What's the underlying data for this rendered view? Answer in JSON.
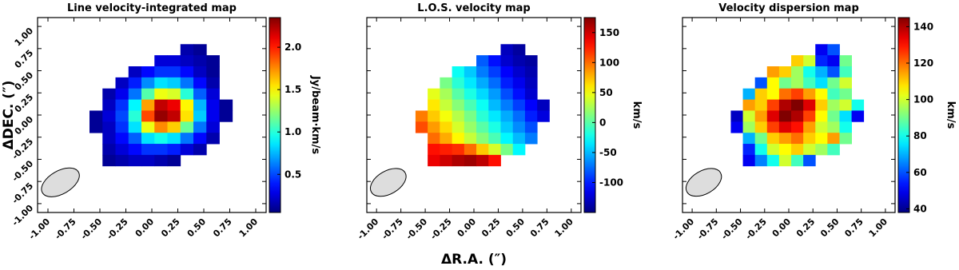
{
  "chart_data": [
    {
      "type": "heatmap",
      "title": "Line velocity-integrated map",
      "ylabel": "ΔDEC. (″)",
      "colorbar_label": "Jy/beam·km/s",
      "colormap": "jet",
      "xlim": [
        -1.1,
        1.1
      ],
      "ylim": [
        -1.1,
        1.1
      ],
      "xticks": [
        {
          "value": -1,
          "label": "-1.00"
        },
        {
          "value": -0.75,
          "label": "-0.75"
        },
        {
          "value": -0.5,
          "label": "-0.50"
        },
        {
          "value": -0.25,
          "label": "-0.25"
        },
        {
          "value": 0,
          "label": "0.00"
        },
        {
          "value": 0.25,
          "label": "0.25"
        },
        {
          "value": 0.5,
          "label": "0.50"
        },
        {
          "value": 0.75,
          "label": "0.75"
        },
        {
          "value": 1,
          "label": "1.00"
        }
      ],
      "yticks": [
        {
          "value": -1,
          "label": "-1.00"
        },
        {
          "value": -0.75,
          "label": "-0.75"
        },
        {
          "value": -0.5,
          "label": "-0.50"
        },
        {
          "value": -0.25,
          "label": "-0.25"
        },
        {
          "value": 0,
          "label": "0.00"
        },
        {
          "value": 0.25,
          "label": "0.25"
        },
        {
          "value": 0.5,
          "label": "0.50"
        },
        {
          "value": 0.75,
          "label": "0.75"
        },
        {
          "value": 1,
          "label": "1.00"
        }
      ],
      "clim": [
        0.05,
        2.35
      ],
      "cticks": [
        0.5,
        {
          "value": 1,
          "label": "1.0"
        },
        1.5,
        {
          "value": 2,
          "label": "2.0"
        }
      ],
      "extent": [
        -0.6,
        0.775,
        -0.575,
        0.8
      ],
      "z": [
        [
          null,
          null,
          null,
          null,
          null,
          null,
          null,
          0.15,
          0.1,
          null,
          null
        ],
        [
          null,
          null,
          null,
          null,
          null,
          0.25,
          0.25,
          0.2,
          0.15,
          0.1,
          null
        ],
        [
          null,
          null,
          null,
          0.2,
          0.35,
          0.45,
          0.45,
          0.35,
          0.2,
          0.1,
          null
        ],
        [
          null,
          null,
          0.2,
          0.4,
          0.65,
          0.85,
          0.8,
          0.6,
          0.35,
          0.15,
          null
        ],
        [
          null,
          0.15,
          0.3,
          0.6,
          1.1,
          1.45,
          1.4,
          1.0,
          0.55,
          0.25,
          null
        ],
        [
          null,
          0.2,
          0.45,
          0.9,
          1.7,
          2.2,
          2.1,
          1.5,
          0.75,
          0.3,
          0.1
        ],
        [
          0.1,
          0.25,
          0.5,
          1.0,
          1.9,
          2.3,
          2.2,
          1.55,
          0.8,
          0.3,
          0.1
        ],
        [
          0.1,
          0.2,
          0.45,
          0.85,
          1.45,
          1.75,
          1.6,
          1.15,
          0.6,
          0.25,
          null
        ],
        [
          null,
          0.2,
          0.35,
          0.55,
          0.85,
          0.95,
          0.85,
          0.6,
          0.35,
          0.15,
          null
        ],
        [
          null,
          0.15,
          0.25,
          0.35,
          0.45,
          0.45,
          0.4,
          0.25,
          0.15,
          null,
          null
        ],
        [
          null,
          0.1,
          0.15,
          0.2,
          0.2,
          0.15,
          0.1,
          null,
          null,
          null,
          null
        ]
      ]
    },
    {
      "type": "heatmap",
      "title": "L.O.S. velocity map",
      "xlabel": "ΔR.A. (″)",
      "colorbar_label": "km/s",
      "colormap": "jet",
      "xlim": [
        -1.1,
        1.1
      ],
      "ylim": [
        -1.1,
        1.1
      ],
      "xticks": [
        {
          "value": -1,
          "label": "-1.00"
        },
        {
          "value": -0.75,
          "label": "-0.75"
        },
        {
          "value": -0.5,
          "label": "-0.50"
        },
        {
          "value": -0.25,
          "label": "-0.25"
        },
        {
          "value": 0,
          "label": "0.00"
        },
        {
          "value": 0.25,
          "label": "0.25"
        },
        {
          "value": 0.5,
          "label": "0.50"
        },
        {
          "value": 0.75,
          "label": "0.75"
        },
        {
          "value": 1,
          "label": "1.00"
        }
      ],
      "yticks": [
        -1,
        -0.75,
        -0.5,
        -0.25,
        0,
        0.25,
        0.5,
        0.75,
        1
      ],
      "clim": [
        -150,
        175
      ],
      "cticks": [
        -100,
        -50,
        0,
        50,
        100,
        150
      ],
      "extent": [
        -0.6,
        0.775,
        -0.575,
        0.8
      ],
      "z": [
        [
          null,
          null,
          null,
          null,
          null,
          null,
          null,
          -130,
          -140,
          null,
          null
        ],
        [
          null,
          null,
          null,
          null,
          null,
          -80,
          -105,
          -125,
          -135,
          -140,
          null
        ],
        [
          null,
          null,
          null,
          -25,
          -45,
          -70,
          -90,
          -110,
          -125,
          -135,
          null
        ],
        [
          null,
          null,
          10,
          -15,
          -35,
          -55,
          -75,
          -100,
          -115,
          -130,
          null
        ],
        [
          null,
          45,
          25,
          0,
          -20,
          -40,
          -60,
          -85,
          -105,
          -125,
          null
        ],
        [
          null,
          60,
          35,
          15,
          -5,
          -25,
          -50,
          -70,
          -90,
          -110,
          -130
        ],
        [
          95,
          70,
          50,
          30,
          10,
          -15,
          -35,
          -55,
          -75,
          -100,
          -120
        ],
        [
          110,
          85,
          65,
          40,
          20,
          0,
          -20,
          -45,
          -65,
          -85,
          null
        ],
        [
          null,
          100,
          80,
          55,
          35,
          15,
          -5,
          -30,
          -50,
          -70,
          null
        ],
        [
          null,
          130,
          125,
          120,
          100,
          70,
          40,
          10,
          -30,
          null,
          null
        ],
        [
          null,
          140,
          150,
          160,
          165,
          155,
          130,
          null,
          null,
          null,
          null
        ]
      ]
    },
    {
      "type": "heatmap",
      "title": "Velocity dispersion map",
      "colorbar_label": "km/s",
      "colormap": "jet",
      "xlim": [
        -1.1,
        1.1
      ],
      "ylim": [
        -1.1,
        1.1
      ],
      "xticks": [
        {
          "value": -1,
          "label": "-1.00"
        },
        {
          "value": -0.75,
          "label": "-0.75"
        },
        {
          "value": -0.5,
          "label": "-0.50"
        },
        {
          "value": -0.25,
          "label": "-0.25"
        },
        {
          "value": 0,
          "label": "0.00"
        },
        {
          "value": 0.25,
          "label": "0.25"
        },
        {
          "value": 0.5,
          "label": "0.50"
        },
        {
          "value": 0.75,
          "label": "0.75"
        },
        {
          "value": 1,
          "label": "1.00"
        }
      ],
      "yticks": [
        -1,
        -0.75,
        -0.5,
        -0.25,
        0,
        0.25,
        0.5,
        0.75,
        1
      ],
      "clim": [
        38,
        145
      ],
      "cticks": [
        40,
        60,
        80,
        100,
        120,
        140
      ],
      "extent": [
        -0.6,
        0.775,
        -0.575,
        0.8
      ],
      "z": [
        [
          null,
          null,
          null,
          null,
          null,
          null,
          null,
          50,
          60,
          null,
          null
        ],
        [
          null,
          null,
          null,
          null,
          null,
          110,
          100,
          55,
          50,
          90,
          null
        ],
        [
          null,
          null,
          null,
          115,
          110,
          95,
          80,
          70,
          60,
          85,
          null
        ],
        [
          null,
          null,
          60,
          105,
          90,
          95,
          85,
          75,
          90,
          100,
          null
        ],
        [
          null,
          70,
          110,
          105,
          120,
          125,
          115,
          105,
          85,
          90,
          null
        ],
        [
          null,
          115,
          110,
          125,
          140,
          145,
          135,
          110,
          95,
          100,
          80
        ],
        [
          45,
          100,
          115,
          135,
          145,
          140,
          125,
          105,
          90,
          75,
          50
        ],
        [
          50,
          95,
          110,
          125,
          135,
          130,
          115,
          100,
          95,
          80,
          null
        ],
        [
          null,
          70,
          90,
          110,
          115,
          120,
          110,
          105,
          115,
          90,
          null
        ],
        [
          null,
          55,
          80,
          100,
          105,
          110,
          100,
          95,
          85,
          null,
          null
        ],
        [
          null,
          50,
          65,
          80,
          100,
          85,
          60,
          null,
          null,
          null,
          null
        ]
      ]
    }
  ]
}
